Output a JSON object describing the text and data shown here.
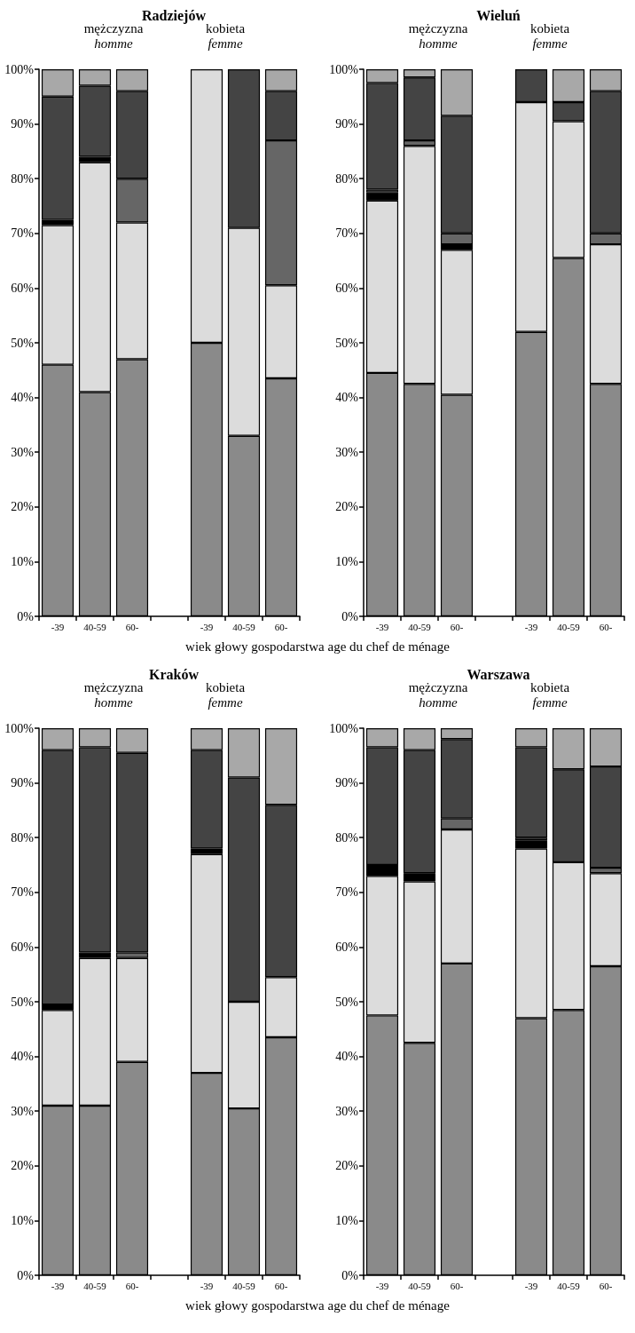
{
  "chart_data": [
    {
      "type": "bar",
      "title": "Radziejów",
      "annotations": [
        "mężczyzna\nhomme",
        "kobieta\nfemme"
      ],
      "categories": [
        "-39",
        "40-59",
        "60-",
        null,
        "-39",
        "40-59",
        "60-"
      ],
      "stacked": true,
      "series": [
        {
          "color": "#8a8a8a",
          "values": [
            46,
            41,
            47,
            null,
            50,
            33,
            43.5
          ]
        },
        {
          "color": "#dcdcdc",
          "values": [
            25.5,
            42,
            25,
            null,
            50,
            38,
            17
          ]
        },
        {
          "color": "#000000",
          "values": [
            1,
            1,
            null,
            null,
            null,
            null,
            null
          ]
        },
        {
          "color": "#666666",
          "values": [
            null,
            null,
            8,
            null,
            null,
            null,
            26.5
          ]
        },
        {
          "color": "#444444",
          "values": [
            22.5,
            13,
            16,
            null,
            null,
            29,
            9
          ]
        },
        {
          "color": "#a8a8a8",
          "values": [
            5,
            3,
            4,
            null,
            null,
            null,
            4
          ]
        }
      ],
      "ylim": [
        0,
        100
      ],
      "yticks": [
        {
          "value": 0,
          "label": "0%"
        },
        {
          "value": 10,
          "label": "10%"
        },
        {
          "value": 20,
          "label": "20%"
        },
        {
          "value": 30,
          "label": "30%"
        },
        {
          "value": 40,
          "label": "40%"
        },
        {
          "value": 50,
          "label": "50%"
        },
        {
          "value": 60,
          "label": "60%"
        },
        {
          "value": 70,
          "label": "70%"
        },
        {
          "value": 80,
          "label": "80%"
        },
        {
          "value": 90,
          "label": "90%"
        },
        {
          "value": 100,
          "label": "100%"
        }
      ],
      "xlabel": "wiek głowy gospodarstwa age du chef de ménage",
      "grid": false
    },
    {
      "type": "bar",
      "title": "Wieluń",
      "annotations": [
        "mężczyzna\nhomme",
        "kobieta\nfemme"
      ],
      "categories": [
        "-39",
        "40-59",
        "60-",
        null,
        "-39",
        "40-59",
        "60-"
      ],
      "stacked": true,
      "series": [
        {
          "color": "#8a8a8a",
          "values": [
            44.5,
            42.5,
            40.5,
            null,
            52,
            65.5,
            42.5
          ]
        },
        {
          "color": "#dcdcdc",
          "values": [
            31.5,
            43.5,
            26.5,
            null,
            42,
            25,
            25.5
          ]
        },
        {
          "color": "#000000",
          "values": [
            1.5,
            null,
            1,
            null,
            null,
            null,
            null
          ]
        },
        {
          "color": "#666666",
          "values": [
            0.5,
            1,
            2,
            null,
            null,
            null,
            2
          ]
        },
        {
          "color": "#444444",
          "values": [
            19.5,
            11.5,
            21.5,
            null,
            6,
            3.5,
            26
          ]
        },
        {
          "color": "#a8a8a8",
          "values": [
            2.5,
            1.5,
            8.5,
            null,
            null,
            6,
            4
          ]
        }
      ],
      "ylim": [
        0,
        100
      ],
      "yticks": [
        {
          "value": 0,
          "label": "0%"
        },
        {
          "value": 10,
          "label": "10%"
        },
        {
          "value": 20,
          "label": "20%"
        },
        {
          "value": 30,
          "label": "30%"
        },
        {
          "value": 40,
          "label": "40%"
        },
        {
          "value": 50,
          "label": "50%"
        },
        {
          "value": 60,
          "label": "60%"
        },
        {
          "value": 70,
          "label": "70%"
        },
        {
          "value": 80,
          "label": "80%"
        },
        {
          "value": 90,
          "label": "90%"
        },
        {
          "value": 100,
          "label": "100%"
        }
      ],
      "grid": false
    },
    {
      "type": "bar",
      "title": "Kraków",
      "annotations": [
        "mężczyzna\nhomme",
        "kobieta\nfemme"
      ],
      "categories": [
        "-39",
        "40-59",
        "60-",
        null,
        "-39",
        "40-59",
        "60-"
      ],
      "stacked": true,
      "series": [
        {
          "color": "#8a8a8a",
          "values": [
            31,
            31,
            39,
            null,
            37,
            30.5,
            43.5
          ]
        },
        {
          "color": "#dcdcdc",
          "values": [
            17.5,
            27,
            19,
            null,
            40,
            19.5,
            11
          ]
        },
        {
          "color": "#000000",
          "values": [
            1,
            1,
            null,
            null,
            1,
            null,
            null
          ]
        },
        {
          "color": "#666666",
          "values": [
            null,
            null,
            1,
            null,
            null,
            null,
            null
          ]
        },
        {
          "color": "#444444",
          "values": [
            46.5,
            37.5,
            36.5,
            null,
            18,
            41,
            31.5
          ]
        },
        {
          "color": "#a8a8a8",
          "values": [
            4,
            3.5,
            4.5,
            null,
            4,
            9,
            14
          ]
        }
      ],
      "ylim": [
        0,
        100
      ],
      "yticks": [
        {
          "value": 0,
          "label": "0%"
        },
        {
          "value": 10,
          "label": "10%"
        },
        {
          "value": 20,
          "label": "20%"
        },
        {
          "value": 30,
          "label": "30%"
        },
        {
          "value": 40,
          "label": "40%"
        },
        {
          "value": 50,
          "label": "50%"
        },
        {
          "value": 60,
          "label": "60%"
        },
        {
          "value": 70,
          "label": "70%"
        },
        {
          "value": 80,
          "label": "80%"
        },
        {
          "value": 90,
          "label": "90%"
        },
        {
          "value": 100,
          "label": "100%"
        }
      ],
      "xlabel": "wiek głowy gospodarstwa age du chef de ménage",
      "grid": false
    },
    {
      "type": "bar",
      "title": "Warszawa",
      "annotations": [
        "mężczyzna\nhomme",
        "kobieta\nfemme"
      ],
      "categories": [
        "-39",
        "40-59",
        "60-",
        null,
        "-39",
        "40-59",
        "60-"
      ],
      "stacked": true,
      "series": [
        {
          "color": "#8a8a8a",
          "values": [
            47.5,
            42.5,
            57,
            null,
            47,
            48.5,
            56.5
          ]
        },
        {
          "color": "#dcdcdc",
          "values": [
            25.5,
            29.5,
            24.5,
            null,
            31,
            27,
            17
          ]
        },
        {
          "color": "#000000",
          "values": [
            2,
            1.5,
            null,
            null,
            1.5,
            null,
            null
          ]
        },
        {
          "color": "#666666",
          "values": [
            null,
            null,
            2,
            null,
            0.5,
            null,
            1
          ]
        },
        {
          "color": "#444444",
          "values": [
            21.5,
            22.5,
            14.5,
            null,
            16.5,
            17,
            18.5
          ]
        },
        {
          "color": "#a8a8a8",
          "values": [
            3.5,
            4,
            2,
            null,
            3.5,
            7.5,
            7
          ]
        }
      ],
      "ylim": [
        0,
        100
      ],
      "yticks": [
        {
          "value": 0,
          "label": "0%"
        },
        {
          "value": 10,
          "label": "10%"
        },
        {
          "value": 20,
          "label": "20%"
        },
        {
          "value": 30,
          "label": "30%"
        },
        {
          "value": 40,
          "label": "40%"
        },
        {
          "value": 50,
          "label": "50%"
        },
        {
          "value": 60,
          "label": "60%"
        },
        {
          "value": 70,
          "label": "70%"
        },
        {
          "value": 80,
          "label": "80%"
        },
        {
          "value": 90,
          "label": "90%"
        },
        {
          "value": 100,
          "label": "100%"
        }
      ],
      "grid": false
    }
  ]
}
